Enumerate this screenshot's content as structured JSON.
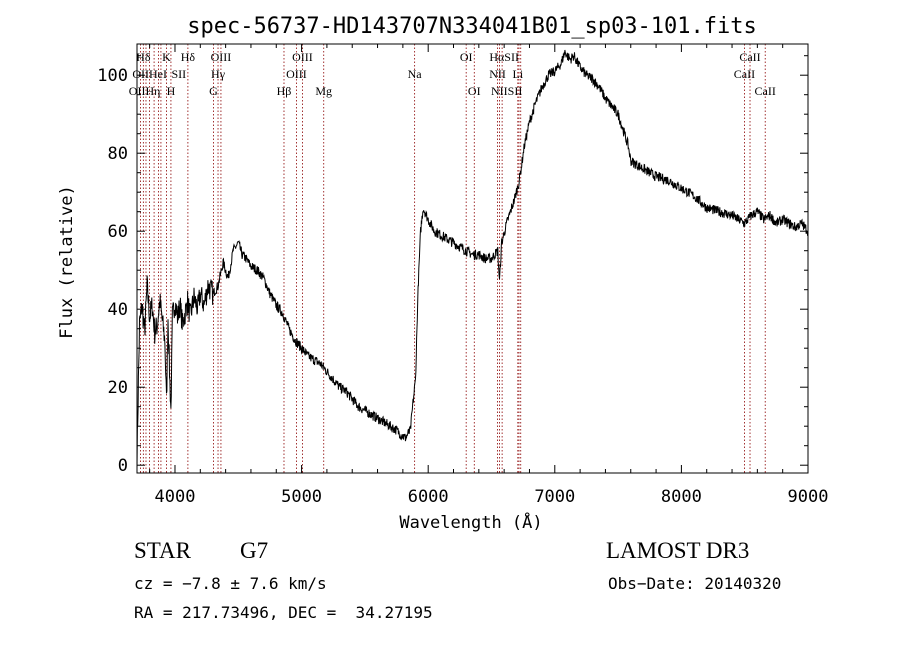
{
  "chart_data": {
    "type": "line",
    "title": "spec-56737-HD143707N334041B01_sp03-101.fits",
    "xlabel": "Wavelength (Å)",
    "ylabel": "Flux (relative)",
    "xlim": [
      3700,
      9000
    ],
    "ylim": [
      -2,
      108
    ],
    "xticks": [
      4000,
      5000,
      6000,
      7000,
      8000,
      9000
    ],
    "yticks": [
      0,
      20,
      40,
      60,
      80,
      100
    ],
    "xtick_labels": [
      "4000",
      "5000",
      "6000",
      "7000",
      "8000",
      "9000"
    ],
    "ytick_labels": [
      "0",
      "20",
      "40",
      "60",
      "80",
      "100"
    ],
    "line_color": "#000000",
    "marker_color": "#8b0000",
    "series": [
      {
        "name": "flux",
        "x": [
          3700,
          3720,
          3740,
          3760,
          3780,
          3800,
          3820,
          3840,
          3860,
          3880,
          3900,
          3920,
          3933,
          3945,
          3960,
          3968,
          3980,
          4000,
          4020,
          4040,
          4060,
          4080,
          4100,
          4120,
          4150,
          4180,
          4200,
          4230,
          4260,
          4300,
          4340,
          4380,
          4420,
          4460,
          4500,
          4530,
          4560,
          4600,
          4650,
          4700,
          4750,
          4800,
          4850,
          4900,
          4950,
          5000,
          5050,
          5100,
          5150,
          5200,
          5250,
          5300,
          5350,
          5400,
          5450,
          5500,
          5550,
          5600,
          5650,
          5700,
          5750,
          5780,
          5820,
          5860,
          5880,
          5900,
          5920,
          5940,
          5960,
          6000,
          6050,
          6100,
          6150,
          6200,
          6250,
          6300,
          6350,
          6400,
          6450,
          6500,
          6550,
          6563,
          6580,
          6620,
          6680,
          6720,
          6760,
          6800,
          6850,
          6900,
          6950,
          7000,
          7050,
          7080,
          7120,
          7150,
          7200,
          7250,
          7300,
          7350,
          7400,
          7450,
          7500,
          7550,
          7580,
          7600,
          7650,
          7700,
          7800,
          7900,
          8000,
          8100,
          8200,
          8300,
          8400,
          8450,
          8500,
          8550,
          8600,
          8650,
          8700,
          8750,
          8800,
          8850,
          8900,
          8950,
          9000
        ],
        "y": [
          2,
          36,
          41,
          34,
          46,
          38,
          41,
          34,
          36,
          42,
          37,
          32,
          16,
          38,
          21,
          14,
          38,
          42,
          38,
          41,
          36,
          39,
          42,
          38,
          43,
          40,
          44,
          41,
          46,
          44,
          46,
          52,
          48,
          55,
          57,
          54,
          53,
          51,
          50,
          48,
          44,
          41,
          39,
          35,
          32,
          30,
          28,
          27,
          26,
          24,
          22,
          20,
          19,
          17,
          15,
          14,
          13,
          12,
          11,
          10,
          9,
          8,
          7,
          9,
          16,
          22,
          45,
          60,
          66,
          63,
          60,
          59,
          58,
          57,
          56,
          55,
          54,
          54,
          53,
          53,
          55,
          47,
          57,
          62,
          68,
          73,
          82,
          88,
          93,
          97,
          100,
          101,
          103,
          106,
          104,
          105,
          102,
          100,
          99,
          97,
          94,
          92,
          90,
          85,
          82,
          78,
          77,
          76,
          74,
          73,
          71,
          69,
          66,
          65,
          64,
          63,
          62,
          64,
          65,
          63,
          64,
          62,
          63,
          62,
          61,
          62,
          60
        ]
      }
    ],
    "lines_row1": [
      {
        "label": "Hδ",
        "wavelength": 3750
      },
      {
        "label": "K",
        "wavelength": 3933
      },
      {
        "label": "Hδ",
        "wavelength": 4102
      },
      {
        "label": "OIII",
        "wavelength": 4363
      },
      {
        "label": "OIII",
        "wavelength": 5007
      },
      {
        "label": "OI",
        "wavelength": 6300
      },
      {
        "label": "HαSII",
        "wavelength": 6600
      },
      {
        "label": "CaII",
        "wavelength": 8542
      }
    ],
    "lines_row2": [
      {
        "label": "OIIHeI",
        "wavelength": 3800
      },
      {
        "label": "SII",
        "wavelength": 4030
      },
      {
        "label": "Hγ",
        "wavelength": 4340
      },
      {
        "label": "OIII",
        "wavelength": 4959
      },
      {
        "label": "Na",
        "wavelength": 5893
      },
      {
        "label": "NII",
        "wavelength": 6548
      },
      {
        "label": "Li",
        "wavelength": 6708
      },
      {
        "label": "CaII",
        "wavelength": 8498
      }
    ],
    "lines_row3": [
      {
        "label": "OIIHη",
        "wavelength": 3760
      },
      {
        "label": "H",
        "wavelength": 3968
      },
      {
        "label": "G",
        "wavelength": 4304
      },
      {
        "label": "Hβ",
        "wavelength": 4861
      },
      {
        "label": "Mg",
        "wavelength": 5175
      },
      {
        "label": "OI",
        "wavelength": 6364
      },
      {
        "label": "NIISII",
        "wavelength": 6620
      },
      {
        "label": "CaII",
        "wavelength": 8662
      }
    ],
    "marker_wavelengths": [
      3727,
      3750,
      3771,
      3798,
      3835,
      3869,
      3889,
      3933,
      3968,
      4102,
      4304,
      4340,
      4363,
      4861,
      4959,
      5007,
      5175,
      5893,
      6300,
      6364,
      6548,
      6563,
      6584,
      6708,
      6717,
      6731,
      8498,
      8542,
      8662
    ]
  },
  "info": {
    "class_label": "STAR",
    "subclass": "G7",
    "survey": "LAMOST DR3",
    "cz": "cz = −7.8 ± 7.6 km/s",
    "obs_date": "Obs−Date: 20140320",
    "coords": "RA = 217.73496, DEC =  34.27195"
  }
}
